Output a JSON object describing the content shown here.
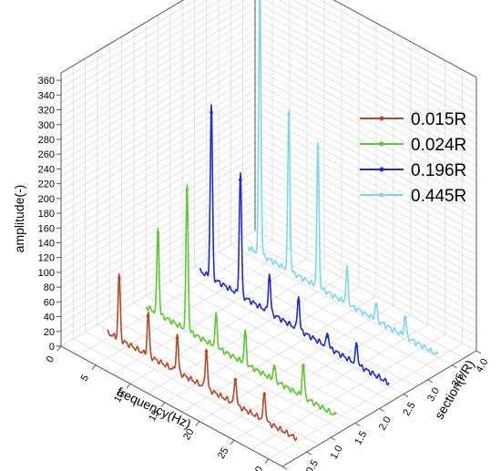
{
  "chart_data": {
    "type": "line",
    "title": "",
    "plot_style": "3D waterfall",
    "xlabel": "frequency(Hz)",
    "ylabel": "amplitude(-)",
    "zlabel": "section(r/R)",
    "xlim": [
      0,
      32
    ],
    "ylim": [
      0,
      370
    ],
    "zlim": [
      0,
      4
    ],
    "x_ticks": [
      "0",
      "5",
      "10",
      "15",
      "20",
      "25",
      "30"
    ],
    "y_ticks": [
      "0",
      "20",
      "40",
      "60",
      "80",
      "100",
      "120",
      "140",
      "160",
      "180",
      "200",
      "220",
      "240",
      "260",
      "280",
      "300",
      "320",
      "340",
      "360"
    ],
    "z_ticks": [
      "0.0",
      "0.5",
      "1.0",
      "1.5",
      "2.0",
      "2.5",
      "3.0",
      "3.5",
      "4.0"
    ],
    "grid": true,
    "legend_position": "right",
    "series": [
      {
        "name": "0.015R",
        "color": "#b5482a",
        "section": 0.6,
        "peaks": [
          [
            4.2,
            90
          ],
          [
            8.4,
            60
          ],
          [
            12.6,
            52
          ],
          [
            16.8,
            55
          ],
          [
            21.0,
            38
          ],
          [
            25.2,
            40
          ]
        ],
        "baseline_start": 8,
        "baseline_end": 3
      },
      {
        "name": "0.024R",
        "color": "#5dc831",
        "section": 1.4,
        "peaks": [
          [
            4.2,
            120
          ],
          [
            8.4,
            200
          ],
          [
            12.6,
            45
          ],
          [
            16.8,
            45
          ],
          [
            21.0,
            22
          ],
          [
            25.2,
            47
          ]
        ],
        "baseline_start": 12,
        "baseline_end": 3
      },
      {
        "name": "0.196R",
        "color": "#1f2cc8",
        "section": 2.5,
        "peaks": [
          [
            4.2,
            240
          ],
          [
            8.4,
            170
          ],
          [
            12.6,
            55
          ],
          [
            16.8,
            48
          ],
          [
            21.0,
            22
          ],
          [
            25.2,
            30
          ]
        ],
        "baseline_start": 18,
        "baseline_end": 3
      },
      {
        "name": "0.445R",
        "color": "#7fd6f0",
        "section": 3.5,
        "peaks": [
          [
            4.2,
            370
          ],
          [
            8.4,
            220
          ],
          [
            12.6,
            195
          ],
          [
            16.8,
            50
          ],
          [
            21.0,
            25
          ],
          [
            25.2,
            30
          ]
        ],
        "baseline_start": 10,
        "baseline_end": 3
      }
    ]
  }
}
